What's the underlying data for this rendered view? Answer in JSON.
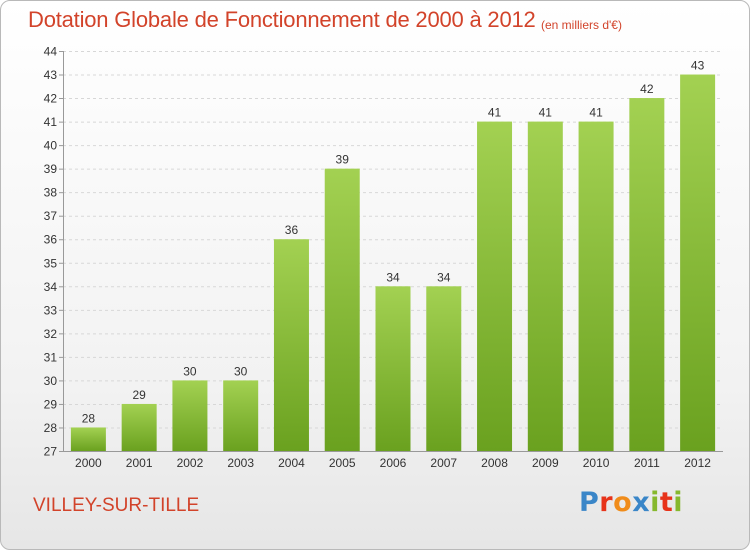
{
  "header": {
    "title": "Dotation Globale de Fonctionnement de 2000 à 2012",
    "unit": "(en milliers d'€)"
  },
  "footer": {
    "commune": "VILLEY-SUR-TILLE",
    "logo": {
      "letters": [
        "P",
        "r",
        "o",
        "x",
        "i",
        "t",
        "i"
      ],
      "colors": [
        "#3a86c8",
        "#e7331a",
        "#f08c1a",
        "#3a86c8",
        "#86b82d",
        "#e7331a",
        "#86b82d"
      ]
    }
  },
  "chart_data": {
    "type": "bar",
    "title": "Dotation Globale de Fonctionnement de 2000 à 2012",
    "categories": [
      "2000",
      "2001",
      "2002",
      "2003",
      "2004",
      "2005",
      "2006",
      "2007",
      "2008",
      "2009",
      "2010",
      "2011",
      "2012"
    ],
    "values": [
      28,
      29,
      30,
      30,
      36,
      39,
      34,
      34,
      41,
      41,
      41,
      42,
      43
    ],
    "xlabel": "",
    "ylabel": "",
    "ylim": [
      27,
      44
    ],
    "yticks": [
      27,
      28,
      29,
      30,
      31,
      32,
      33,
      34,
      35,
      36,
      37,
      38,
      39,
      40,
      41,
      42,
      43,
      44
    ],
    "grid": true,
    "legend": "none",
    "colors": {
      "bar_light": "#a3d152",
      "bar_dark": "#6aa11f",
      "grid": "#d7d7d7"
    }
  }
}
